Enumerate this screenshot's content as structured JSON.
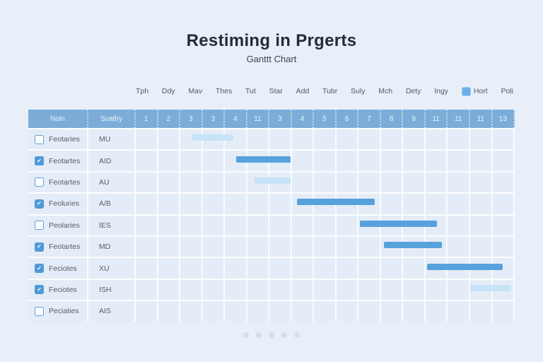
{
  "title": "Restiming in Prgerts",
  "subtitle": "Ganttt Chart",
  "day_labels": [
    "Tph",
    "Ddy",
    "Mav",
    "Thes",
    "Tut",
    "Star",
    "Add",
    "Tubr",
    "Suly",
    "Mch",
    "Dety",
    "Ingy"
  ],
  "legend": {
    "label": "Hort",
    "swatch_color": "#6cb0e6"
  },
  "trailing_label": "Poli",
  "colors": {
    "page_bg": "#e9eff9",
    "header_bg": "#7badd8",
    "row_bg": "#e4ecf7",
    "bar_dark": "#57a1dc",
    "bar_light": "#c8e3f8",
    "checkbox_checked": "#4f9ad7"
  },
  "table": {
    "col_headers": [
      "Noln",
      "Suatlry"
    ],
    "day_numbers": [
      "1",
      "2",
      "3",
      "3",
      "4",
      "11",
      "3",
      "4",
      "5",
      "6",
      "7",
      "8",
      "9",
      "11",
      "11",
      "11",
      "13"
    ],
    "rows": [
      {
        "checked": false,
        "label": "Feotaries",
        "value": "MU",
        "bar": {
          "left_pct": 14.9,
          "width_pct": 10.8,
          "shade": "light"
        }
      },
      {
        "checked": true,
        "label": "Feotartes",
        "value": "AID",
        "bar": {
          "left_pct": 26.5,
          "width_pct": 14.4,
          "shade": "dark"
        }
      },
      {
        "checked": false,
        "label": "Feotartes",
        "value": "AU",
        "bar": {
          "left_pct": 31.3,
          "width_pct": 9.5,
          "shade": "light"
        }
      },
      {
        "checked": true,
        "label": "Feoluries",
        "value": "A/B",
        "bar": {
          "left_pct": 42.5,
          "width_pct": 20.5,
          "shade": "dark"
        }
      },
      {
        "checked": false,
        "label": "Peolaries",
        "value": "IES",
        "bar": {
          "left_pct": 59.1,
          "width_pct": 20.3,
          "shade": "dark"
        }
      },
      {
        "checked": true,
        "label": "Feotartes",
        "value": "MD",
        "bar": {
          "left_pct": 65.5,
          "width_pct": 15.3,
          "shade": "dark"
        }
      },
      {
        "checked": true,
        "label": "Feciotes",
        "value": "XU",
        "bar": {
          "left_pct": 76.9,
          "width_pct": 20.0,
          "shade": "dark"
        }
      },
      {
        "checked": true,
        "label": "Feciotes",
        "value": "ISH",
        "bar": {
          "left_pct": 88.2,
          "width_pct": 10.8,
          "shade": "light"
        }
      },
      {
        "checked": false,
        "label": "Peciaties",
        "value": "AIS",
        "bar": null
      }
    ]
  },
  "pagination": {
    "dot_count": 5
  },
  "chart_data": {
    "type": "bar",
    "variant": "gantt",
    "title": "Restiming in Prgerts",
    "subtitle": "Ganttt Chart",
    "x_day_labels": [
      "Tph",
      "Ddy",
      "Mav",
      "Thes",
      "Tut",
      "Star",
      "Add",
      "Tubr",
      "Suly",
      "Mch",
      "Dety",
      "Ingy",
      "Hort",
      "Poli"
    ],
    "x_day_numbers": [
      "1",
      "2",
      "3",
      "3",
      "4",
      "11",
      "3",
      "4",
      "5",
      "6",
      "7",
      "8",
      "9",
      "11",
      "11",
      "11",
      "13"
    ],
    "x_range_columns": [
      0,
      17
    ],
    "legend": [
      {
        "label": "Hort",
        "color": "#57a1dc"
      }
    ],
    "tasks": [
      {
        "name": "Feotaries",
        "code": "MU",
        "checked": false,
        "start_col": 2.5,
        "end_col": 4.4,
        "bar_style": "light"
      },
      {
        "name": "Feotartes",
        "code": "AID",
        "checked": true,
        "start_col": 4.5,
        "end_col": 7.0,
        "bar_style": "dark"
      },
      {
        "name": "Feotartes",
        "code": "AU",
        "checked": false,
        "start_col": 5.3,
        "end_col": 7.0,
        "bar_style": "light"
      },
      {
        "name": "Feoluries",
        "code": "A/B",
        "checked": true,
        "start_col": 7.2,
        "end_col": 10.7,
        "bar_style": "dark"
      },
      {
        "name": "Peolaries",
        "code": "IES",
        "checked": false,
        "start_col": 10.1,
        "end_col": 13.5,
        "bar_style": "dark"
      },
      {
        "name": "Feotartes",
        "code": "MD",
        "checked": true,
        "start_col": 11.1,
        "end_col": 13.7,
        "bar_style": "dark"
      },
      {
        "name": "Feciotes",
        "code": "XU",
        "checked": true,
        "start_col": 13.1,
        "end_col": 16.5,
        "bar_style": "dark"
      },
      {
        "name": "Feciotes",
        "code": "ISH",
        "checked": true,
        "start_col": 15.0,
        "end_col": 16.9,
        "bar_style": "light"
      },
      {
        "name": "Peciaties",
        "code": "AIS",
        "checked": false,
        "start_col": null,
        "end_col": null,
        "bar_style": null
      }
    ]
  }
}
